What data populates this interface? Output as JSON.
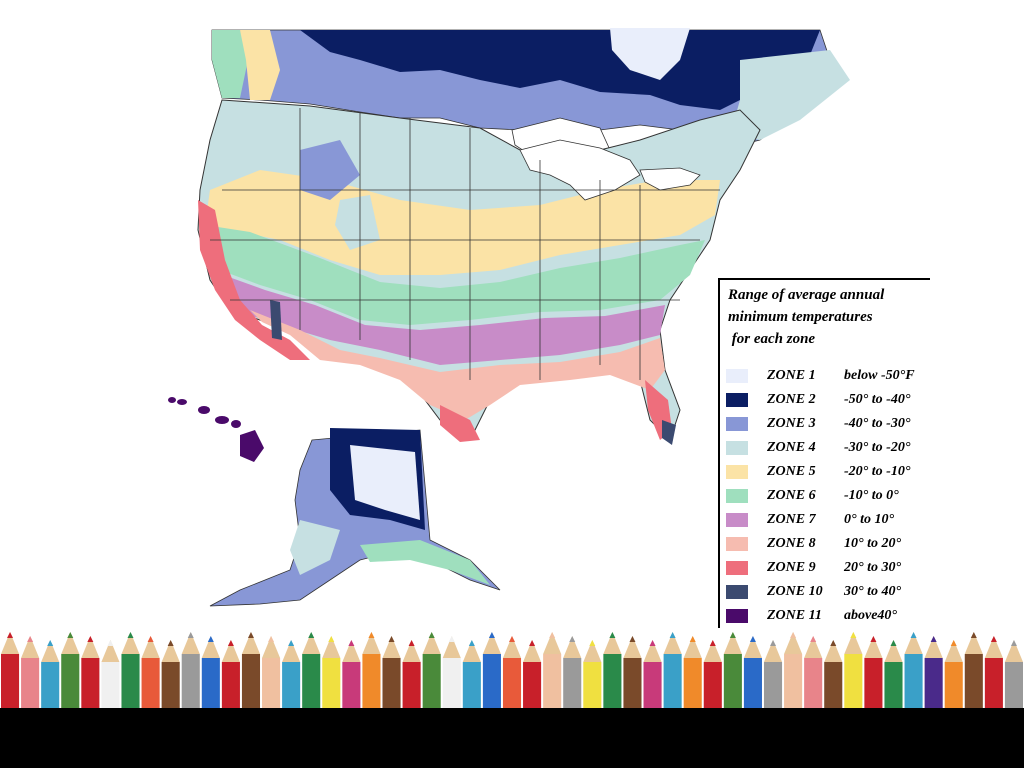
{
  "legend": {
    "title_lines": [
      "Range of average annual",
      "minimum temperatures",
      " for each zone"
    ],
    "items": [
      {
        "zone": "ZONE 1",
        "range": "below -50°F",
        "color": "#e9eefb"
      },
      {
        "zone": "ZONE 2",
        "range": "-50° to -40°",
        "color": "#0b1e63"
      },
      {
        "zone": "ZONE 3",
        "range": "-40° to -30°",
        "color": "#8897d6"
      },
      {
        "zone": "ZONE 4",
        "range": "-30° to -20°",
        "color": "#c6e0e2"
      },
      {
        "zone": "ZONE 5",
        "range": "-20° to -10°",
        "color": "#fbe3a6"
      },
      {
        "zone": "ZONE 6",
        "range": "-10° to 0°",
        "color": "#9fdfbe"
      },
      {
        "zone": "ZONE 7",
        "range": "0° to 10°",
        "color": "#c88cc8"
      },
      {
        "zone": "ZONE 8",
        "range": "10° to 20°",
        "color": "#f6bcb0"
      },
      {
        "zone": "ZONE 9",
        "range": "20° to 30°",
        "color": "#ee6e7c"
      },
      {
        "zone": "ZONE 10",
        "range": "30° to 40°",
        "color": "#3b4a70"
      },
      {
        "zone": "ZONE 11",
        "range": "above40°",
        "color": "#4a0a6a"
      }
    ]
  },
  "colors": {
    "slide_background": "#ffffff",
    "bottom_bar": "#000000",
    "water": "#ffffff"
  },
  "pencil_colors": [
    "#c8202a",
    "#e8848a",
    "#3aa0c8",
    "#4a8a3a",
    "#c8202a",
    "#f0f0f0",
    "#2a8a4a",
    "#e85a3a",
    "#7a4a2a",
    "#9a9a9a",
    "#2a6ac8",
    "#c8202a",
    "#7a4a2a",
    "#f0c0a0",
    "#3aa0c8",
    "#2a8a4a",
    "#f0e040",
    "#c83a7a",
    "#f08a2a",
    "#7a4a2a",
    "#c8202a",
    "#4a8a3a",
    "#f0f0f0",
    "#3aa0c8",
    "#2a6ac8",
    "#e85a3a",
    "#c8202a",
    "#f0c0a0",
    "#9a9a9a",
    "#f0e040",
    "#2a8a4a",
    "#7a4a2a",
    "#c83a7a",
    "#3aa0c8",
    "#f08a2a",
    "#c8202a",
    "#4a8a3a",
    "#2a6ac8",
    "#9a9a9a",
    "#f0c0a0",
    "#e8848a",
    "#7a4a2a",
    "#f0e040",
    "#c8202a",
    "#2a8a4a",
    "#3aa0c8",
    "#4a2a8a",
    "#f08a2a",
    "#7a4a2a",
    "#c8202a",
    "#9a9a9a"
  ]
}
